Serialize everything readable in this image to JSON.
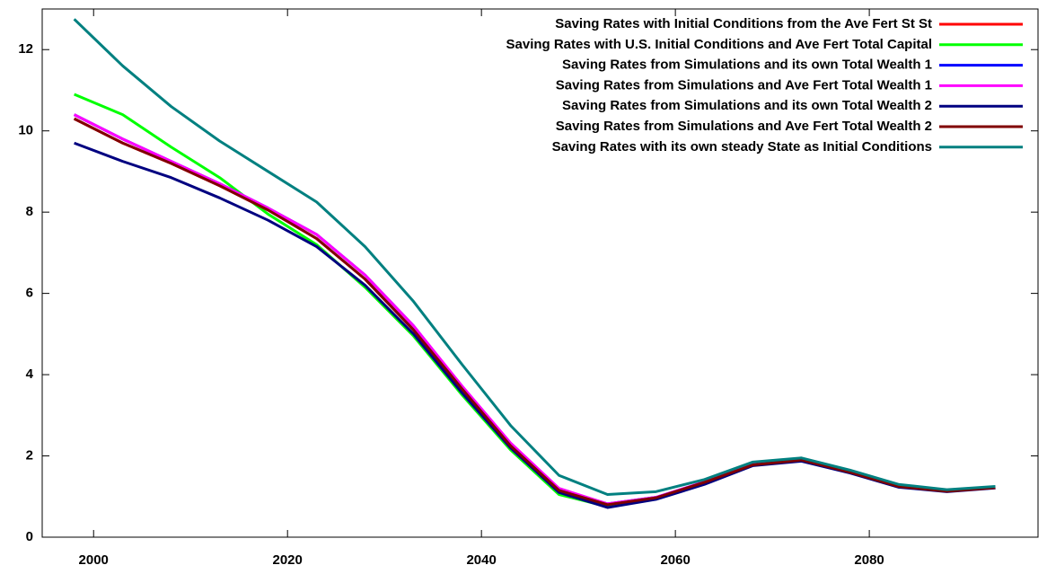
{
  "chart_data": {
    "type": "line",
    "x": [
      1998,
      2003,
      2008,
      2013,
      2018,
      2023,
      2028,
      2033,
      2038,
      2043,
      2048,
      2053,
      2058,
      2063,
      2068,
      2073,
      2078,
      2083,
      2088,
      2093
    ],
    "xlim": [
      1994.7,
      2097.4
    ],
    "xticks": [
      2000,
      2020,
      2040,
      2060,
      2080
    ],
    "ylim": [
      0,
      13
    ],
    "yticks": [
      0,
      2,
      4,
      6,
      8,
      10,
      12
    ],
    "legend_position": "top-right",
    "series": [
      {
        "name": "Saving Rates with Initial Conditions from the Ave Fert St St",
        "color": "#ff0000",
        "values": [
          10.3,
          9.7,
          9.2,
          8.65,
          8.05,
          7.35,
          6.35,
          5.1,
          3.65,
          2.25,
          1.15,
          0.8,
          0.97,
          1.35,
          1.78,
          1.9,
          1.6,
          1.25,
          1.13,
          1.22
        ]
      },
      {
        "name": "Saving Rates with U.S. Initial Conditions and Ave Fert Total Capital",
        "color": "#00ff00",
        "values": [
          10.9,
          10.4,
          9.6,
          8.85,
          7.95,
          7.2,
          6.15,
          4.95,
          3.5,
          2.15,
          1.05,
          0.75,
          0.95,
          1.33,
          1.78,
          1.9,
          1.6,
          1.25,
          1.13,
          1.22
        ]
      },
      {
        "name": "Saving Rates from Simulations and its own Total Wealth 1",
        "color": "#0000ff",
        "values": [
          10.4,
          9.8,
          9.25,
          8.7,
          8.1,
          7.45,
          6.45,
          5.2,
          3.7,
          2.3,
          1.18,
          0.82,
          0.98,
          1.36,
          1.8,
          1.9,
          1.6,
          1.25,
          1.13,
          1.22
        ]
      },
      {
        "name": "Saving Rates from Simulations and Ave Fert Total Wealth 1",
        "color": "#ff00ff",
        "values": [
          10.4,
          9.8,
          9.25,
          8.7,
          8.1,
          7.45,
          6.45,
          5.2,
          3.72,
          2.32,
          1.2,
          0.82,
          0.98,
          1.36,
          1.8,
          1.9,
          1.6,
          1.25,
          1.13,
          1.22
        ]
      },
      {
        "name": "Saving Rates from Simulations and its own Total Wealth 2",
        "color": "#000080",
        "values": [
          9.7,
          9.25,
          8.85,
          8.35,
          7.8,
          7.15,
          6.2,
          5.0,
          3.55,
          2.2,
          1.1,
          0.73,
          0.93,
          1.3,
          1.76,
          1.87,
          1.58,
          1.23,
          1.12,
          1.21
        ]
      },
      {
        "name": "Saving Rates from Simulations and Ave Fert Total Wealth 2",
        "color": "#800000",
        "values": [
          10.3,
          9.7,
          9.2,
          8.65,
          8.05,
          7.35,
          6.35,
          5.1,
          3.65,
          2.25,
          1.15,
          0.8,
          0.97,
          1.35,
          1.78,
          1.9,
          1.6,
          1.25,
          1.13,
          1.22
        ]
      },
      {
        "name": "Saving Rates with its own steady State as Initial Conditions",
        "color": "#008080",
        "values": [
          12.75,
          11.6,
          10.6,
          9.75,
          9.0,
          8.25,
          7.15,
          5.8,
          4.25,
          2.75,
          1.52,
          1.05,
          1.12,
          1.42,
          1.85,
          1.95,
          1.65,
          1.3,
          1.17,
          1.25
        ]
      }
    ]
  }
}
